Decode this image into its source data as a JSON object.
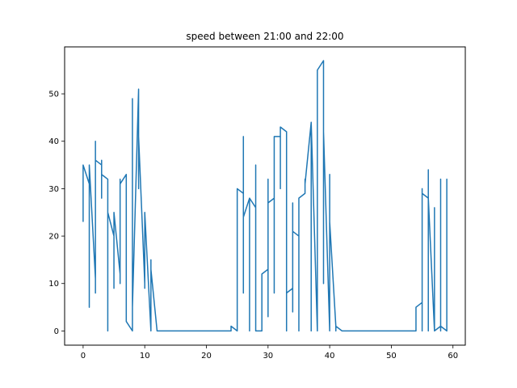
{
  "chart_data": {
    "type": "line",
    "title": "speed between 21:00 and 22:00",
    "xlabel": "",
    "ylabel": "",
    "xlim": [
      -3,
      62
    ],
    "ylim": [
      -3,
      59.9
    ],
    "xticks": [
      0,
      10,
      20,
      30,
      40,
      50,
      60
    ],
    "yticks": [
      0,
      10,
      20,
      30,
      40,
      50
    ],
    "grid": false,
    "color": "#1f77b4",
    "series": [
      {
        "x": [
          0,
          0,
          0,
          0,
          1,
          1,
          1,
          1,
          2,
          2,
          2,
          2,
          3,
          3,
          3,
          3,
          4,
          4,
          4,
          4,
          5,
          5,
          5,
          5,
          6,
          6,
          6,
          6,
          7,
          7,
          7,
          7,
          8,
          8,
          8,
          8,
          9,
          9,
          9,
          9,
          10,
          10,
          10,
          10,
          11,
          11,
          11,
          11,
          12,
          12,
          12,
          12,
          13,
          14,
          15,
          16,
          17,
          18,
          19,
          20,
          21,
          22,
          23,
          24,
          24,
          24,
          24,
          25,
          25,
          25,
          25,
          26,
          26,
          26,
          26,
          27,
          27,
          27,
          27,
          28,
          28,
          28,
          28,
          29,
          29,
          29,
          29,
          30,
          30,
          30,
          30,
          31,
          31,
          31,
          31,
          32,
          32,
          32,
          32,
          33,
          33,
          33,
          33,
          34,
          34,
          34,
          34,
          35,
          35,
          35,
          35,
          36,
          36,
          36,
          36,
          37,
          37,
          37,
          37,
          38,
          38,
          38,
          38,
          39,
          39,
          39,
          39,
          40,
          40,
          40,
          40,
          41,
          41,
          41,
          41,
          42,
          42,
          42,
          42,
          43,
          44,
          45,
          46,
          47,
          48,
          49,
          50,
          51,
          52,
          53,
          54,
          54,
          54,
          54,
          55,
          55,
          55,
          55,
          56,
          56,
          56,
          56,
          57,
          57,
          57,
          57,
          58,
          58,
          58,
          58,
          59,
          59,
          59,
          59
        ],
        "y": [
          23,
          35,
          30,
          35,
          31,
          5,
          12,
          35,
          11,
          40,
          8,
          36,
          35,
          28,
          36,
          33,
          32,
          0,
          19,
          25,
          20,
          9,
          11,
          25,
          12,
          10,
          32,
          31,
          33,
          3,
          31,
          2,
          0,
          48,
          49,
          5,
          51,
          30,
          31,
          41,
          10,
          11,
          9,
          25,
          0,
          14,
          15,
          13,
          0,
          0,
          0,
          0,
          0,
          0,
          0,
          0,
          0,
          0,
          0,
          0,
          0,
          0,
          0,
          0,
          1,
          0,
          1,
          0,
          30,
          0,
          30,
          29,
          8,
          41,
          24,
          28,
          25,
          0,
          28,
          26,
          35,
          0,
          0,
          0,
          12,
          0,
          12,
          13,
          32,
          3,
          27,
          28,
          41,
          8,
          41,
          41,
          32,
          30,
          43,
          42,
          0,
          0,
          8,
          9,
          27,
          4,
          21,
          20,
          28,
          0,
          28,
          29,
          32,
          30,
          31,
          44,
          0,
          0,
          44,
          0,
          54,
          0,
          55,
          57,
          10,
          43,
          42,
          0,
          22,
          33,
          23,
          1,
          1,
          0,
          1,
          0,
          0,
          0,
          0,
          0,
          0,
          0,
          0,
          0,
          0,
          0,
          0,
          0,
          0,
          0,
          0,
          5,
          0,
          5,
          6,
          30,
          0,
          29,
          28,
          34,
          0,
          28,
          0,
          26,
          0,
          0,
          1,
          0,
          32,
          1,
          0,
          32,
          28,
          32
        ]
      }
    ]
  }
}
